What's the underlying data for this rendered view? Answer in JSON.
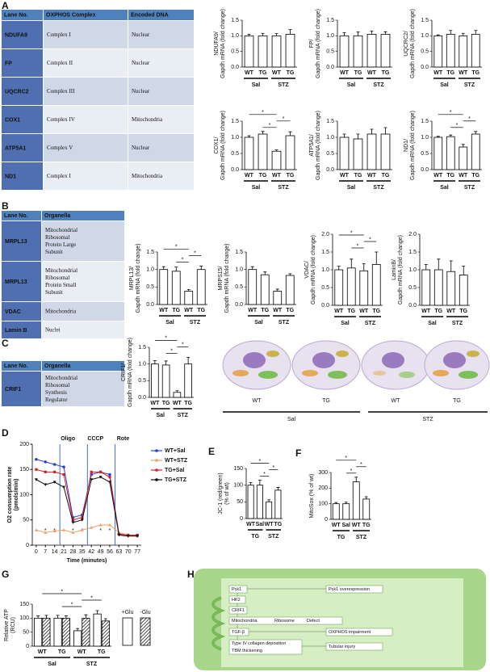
{
  "panels": [
    "A",
    "B",
    "C",
    "D",
    "E",
    "F",
    "G",
    "H"
  ],
  "table_a": {
    "header": [
      "Lane No.",
      "OXPHOS Complex",
      "Encoded DNA"
    ],
    "rows": [
      [
        "NDUFA9",
        "Complex I",
        "Nuclear"
      ],
      [
        "FP",
        "Complex II",
        "Nuclear"
      ],
      [
        "UQCRC2",
        "Complex III",
        "Nuclear"
      ],
      [
        "COX1",
        "Complex IV",
        "Mitochondria"
      ],
      [
        "ATP5A1",
        "Complex V",
        "Nuclear"
      ],
      [
        "ND1",
        "Complex I",
        "Mitochondria"
      ]
    ]
  },
  "table_b": {
    "header": [
      "Lane No.",
      "Organella"
    ],
    "rows": [
      [
        "MRPL13",
        [
          "Mitochondrial",
          "Ribosomal",
          "Protein Large",
          "Subunit"
        ]
      ],
      [
        "MRPL13",
        [
          "Mitochondrial",
          "Ribosomal",
          "Protein Small",
          "Subunit"
        ]
      ],
      [
        "VDAC",
        "Mitochondria"
      ],
      [
        "Lamin B",
        "Nuclei"
      ]
    ]
  },
  "table_c": {
    "header": [
      "Lane No.",
      "Organella"
    ],
    "rows": [
      [
        "CRIF1",
        [
          "Mitochondrial",
          "Ribosomal",
          "Synthesis",
          "Regulator"
        ]
      ]
    ]
  },
  "cells": {
    "labels": [
      "WT",
      "TG",
      "WT",
      "TG"
    ],
    "groups": [
      "Sal",
      "STZ"
    ]
  },
  "diagram_h": {
    "nodes": [
      "Pck1",
      "Pck1 overexpression",
      "HK2",
      "CRIF1",
      "Mitochondria",
      "Ribosome",
      "Defect",
      "TGF-β",
      "OXPHOS impairment",
      "Type IV collagen deposition",
      "TBM thickening",
      "Tubular injury"
    ]
  },
  "chart_data": [
    {
      "type": "bar",
      "ylabel": [
        "NDUFA9/",
        "Gapdh mRNA (fold change)"
      ],
      "categories": [
        "WT",
        "TG",
        "WT",
        "TG"
      ],
      "groups": [
        "Sal",
        "STZ"
      ],
      "values": [
        1.0,
        1.0,
        1.0,
        1.05
      ],
      "errors": [
        0.05,
        0.08,
        0.07,
        0.15
      ],
      "ylim": [
        0,
        1.5
      ],
      "yticks": [
        {
          "value": 0,
          "label": "0.0"
        },
        {
          "value": 0.5,
          "label": "0.5"
        },
        {
          "value": 1,
          "label": "1.0"
        },
        {
          "value": 1.5,
          "label": "1.5"
        }
      ],
      "significance": []
    },
    {
      "type": "bar",
      "ylabel": [
        "FP/",
        "Gapdh mRNA (fold change)"
      ],
      "categories": [
        "WT",
        "TG",
        "WT",
        "TG"
      ],
      "groups": [
        "Sal",
        "STZ"
      ],
      "values": [
        1.0,
        1.0,
        1.05,
        1.05
      ],
      "errors": [
        0.1,
        0.12,
        0.1,
        0.08
      ],
      "ylim": [
        0,
        1.5
      ],
      "yticks": [
        {
          "value": 0,
          "label": "0.0"
        },
        {
          "value": 0.5,
          "label": "0.5"
        },
        {
          "value": 1,
          "label": "1.0"
        },
        {
          "value": 1.5,
          "label": "1.5"
        }
      ],
      "significance": []
    },
    {
      "type": "bar",
      "ylabel": [
        "UQCRC2/",
        "Gapdh mRNA (fold change)"
      ],
      "categories": [
        "WT",
        "TG",
        "WT",
        "TG"
      ],
      "groups": [
        "Sal",
        "STZ"
      ],
      "values": [
        1.0,
        1.05,
        1.0,
        1.05
      ],
      "errors": [
        0.03,
        0.12,
        0.08,
        0.12
      ],
      "ylim": [
        0,
        1.5
      ],
      "yticks": [
        {
          "value": 0,
          "label": "0.0"
        },
        {
          "value": 0.5,
          "label": "0.5"
        },
        {
          "value": 1,
          "label": "1.0"
        },
        {
          "value": 1.5,
          "label": "1.5"
        }
      ],
      "significance": []
    },
    {
      "type": "bar",
      "ylabel": [
        "COX1/",
        "Gapdh mRNA (fold change)"
      ],
      "categories": [
        "WT",
        "TG",
        "WT",
        "TG"
      ],
      "groups": [
        "Sal",
        "STZ"
      ],
      "values": [
        1.0,
        1.1,
        0.57,
        1.05
      ],
      "errors": [
        0.05,
        0.08,
        0.04,
        0.12
      ],
      "ylim": [
        0,
        1.5
      ],
      "yticks": [
        {
          "value": 0,
          "label": "0.0"
        },
        {
          "value": 0.5,
          "label": "0.5"
        },
        {
          "value": 1,
          "label": "1.0"
        },
        {
          "value": 1.5,
          "label": "1.5"
        }
      ],
      "significance": [
        {
          "bars": [
            1,
            2
          ],
          "label": "*"
        },
        {
          "bars": [
            2,
            3
          ],
          "label": "*"
        },
        {
          "bars": [
            0,
            2
          ],
          "label": "*"
        }
      ]
    },
    {
      "type": "bar",
      "ylabel": [
        "ATP5A1/",
        "Gapdh mRNA (fold change)"
      ],
      "categories": [
        "WT",
        "TG",
        "WT",
        "TG"
      ],
      "groups": [
        "Sal",
        "STZ"
      ],
      "values": [
        1.0,
        0.95,
        1.1,
        1.1
      ],
      "errors": [
        0.1,
        0.15,
        0.15,
        0.2
      ],
      "ylim": [
        0,
        1.5
      ],
      "yticks": [
        {
          "value": 0,
          "label": "0.0"
        },
        {
          "value": 0.5,
          "label": "0.5"
        },
        {
          "value": 1,
          "label": "1.0"
        },
        {
          "value": 1.5,
          "label": "1.5"
        }
      ],
      "significance": []
    },
    {
      "type": "bar",
      "ylabel": [
        "ND1/",
        "Gapdh mRNA (fold change)"
      ],
      "categories": [
        "WT",
        "TG",
        "WT",
        "TG"
      ],
      "groups": [
        "Sal",
        "STZ"
      ],
      "values": [
        1.0,
        1.02,
        0.7,
        1.1
      ],
      "errors": [
        0.03,
        0.05,
        0.08,
        0.08
      ],
      "ylim": [
        0,
        1.5
      ],
      "yticks": [
        {
          "value": 0,
          "label": "0.0"
        },
        {
          "value": 0.5,
          "label": "0.5"
        },
        {
          "value": 1,
          "label": "1.0"
        },
        {
          "value": 1.5,
          "label": "1.5"
        }
      ],
      "significance": [
        {
          "bars": [
            1,
            2
          ],
          "label": "*"
        },
        {
          "bars": [
            2,
            3
          ],
          "label": "*"
        },
        {
          "bars": [
            0,
            2
          ],
          "label": "*"
        }
      ]
    },
    {
      "type": "bar",
      "ylabel": [
        "MRPL13/",
        "Gapdh mRNA (fold change)"
      ],
      "categories": [
        "WT",
        "TG",
        "WT",
        "TG"
      ],
      "groups": [
        "Sal",
        "STZ"
      ],
      "values": [
        1.0,
        0.95,
        0.38,
        1.0
      ],
      "errors": [
        0.08,
        0.12,
        0.05,
        0.1
      ],
      "ylim": [
        0,
        1.5
      ],
      "yticks": [
        {
          "value": 0,
          "label": "0.0"
        },
        {
          "value": 0.5,
          "label": "0.5"
        },
        {
          "value": 1,
          "label": "1.0"
        },
        {
          "value": 1.5,
          "label": "1.5"
        }
      ],
      "significance": [
        {
          "bars": [
            1,
            2
          ],
          "label": "*"
        },
        {
          "bars": [
            2,
            3
          ],
          "label": "*"
        },
        {
          "bars": [
            0,
            2
          ],
          "label": "*"
        }
      ]
    },
    {
      "type": "bar",
      "ylabel": [
        "MRPS15/",
        "Gapdh mRNA (fold change)"
      ],
      "categories": [
        "WT",
        "TG",
        "WT",
        "TG"
      ],
      "groups": [
        "Sal",
        "STZ"
      ],
      "values": [
        1.0,
        0.85,
        0.38,
        0.83
      ],
      "errors": [
        0.08,
        0.08,
        0.06,
        0.05
      ],
      "ylim": [
        0,
        1.5
      ],
      "yticks": [
        {
          "value": 0,
          "label": "0.0"
        },
        {
          "value": 0.5,
          "label": "0.5"
        },
        {
          "value": 1,
          "label": "1.0"
        },
        {
          "value": 1.5,
          "label": "1.5"
        }
      ],
      "significance": []
    },
    {
      "type": "bar",
      "ylabel": [
        "VDAC/",
        "Gapdh mRNA (fold change)"
      ],
      "categories": [
        "WT",
        "TG",
        "WT",
        "TG"
      ],
      "groups": [
        "Sal",
        "STZ"
      ],
      "values": [
        1.0,
        1.05,
        0.97,
        1.15
      ],
      "errors": [
        0.1,
        0.25,
        0.2,
        0.35
      ],
      "ylim": [
        0,
        2
      ],
      "yticks": [
        {
          "value": 0,
          "label": "0.0"
        },
        {
          "value": 0.5,
          "label": "0.5"
        },
        {
          "value": 1,
          "label": "1.0"
        },
        {
          "value": 1.5,
          "label": "1.5"
        },
        {
          "value": 2,
          "label": "2.0"
        }
      ],
      "significance": [
        {
          "bars": [
            1,
            2
          ],
          "label": "*"
        },
        {
          "bars": [
            2,
            3
          ],
          "label": "*"
        },
        {
          "bars": [
            0,
            2
          ],
          "label": "*"
        }
      ]
    },
    {
      "type": "bar",
      "ylabel": [
        "LaminB/",
        "Gapdh mRNA (fold change)"
      ],
      "categories": [
        "WT",
        "TG",
        "WT",
        "TG"
      ],
      "groups": [
        "Sal",
        "STZ"
      ],
      "values": [
        1.0,
        1.0,
        0.95,
        0.85
      ],
      "errors": [
        0.15,
        0.3,
        0.3,
        0.25
      ],
      "ylim": [
        0,
        2
      ],
      "yticks": [
        {
          "value": 0,
          "label": "0.0"
        },
        {
          "value": 0.5,
          "label": "0.5"
        },
        {
          "value": 1,
          "label": "1.0"
        },
        {
          "value": 1.5,
          "label": "1.5"
        },
        {
          "value": 2,
          "label": "2.0"
        }
      ],
      "significance": []
    },
    {
      "type": "bar",
      "ylabel": [
        "CRIF1/",
        "Gapdh mRNA (fold change)"
      ],
      "categories": [
        "WT",
        "TG",
        "WT",
        "TG"
      ],
      "groups": [
        "Sal",
        "STZ"
      ],
      "values": [
        1.0,
        0.97,
        0.15,
        1.0
      ],
      "errors": [
        0.1,
        0.12,
        0.05,
        0.2
      ],
      "ylim": [
        0,
        1.5
      ],
      "yticks": [
        {
          "value": 0,
          "label": "0.0"
        },
        {
          "value": 0.5,
          "label": "0.5"
        },
        {
          "value": 1,
          "label": "1.0"
        },
        {
          "value": 1.5,
          "label": "1.5"
        }
      ],
      "significance": [
        {
          "bars": [
            1,
            2
          ],
          "label": "*"
        },
        {
          "bars": [
            2,
            3
          ],
          "label": "*"
        },
        {
          "bars": [
            0,
            2
          ],
          "label": "*"
        }
      ]
    },
    {
      "type": "line",
      "ylabel": [
        "O2 consumption rate",
        "(pmols/min)"
      ],
      "xlabel": "Time (minutes)",
      "x": [
        0,
        7,
        14,
        21,
        28,
        35,
        42,
        49,
        56,
        63,
        70,
        77
      ],
      "xlim": [
        -3,
        80
      ],
      "xticks": [
        0,
        7,
        14,
        21,
        28,
        35,
        42,
        49,
        56,
        63,
        70,
        77
      ],
      "ylim": [
        0,
        200
      ],
      "yticks": [
        0,
        50,
        100,
        150,
        200
      ],
      "injections": [
        {
          "label": "Oligo",
          "x": 18
        },
        {
          "label": "CCCP",
          "x": 39
        },
        {
          "label": "Rote",
          "x": 60
        }
      ],
      "significance_label": "*",
      "significance_x": [
        7,
        14,
        28,
        35,
        49,
        56
      ],
      "series": [
        {
          "name": "WT+Sal",
          "color": "#2b3fd6",
          "marker": "circle",
          "values": [
            170,
            165,
            160,
            155,
            55,
            60,
            140,
            145,
            140,
            22,
            20,
            20
          ]
        },
        {
          "name": "WT+STZ",
          "color": "#f0a060",
          "marker": "triangle",
          "values": [
            30,
            25,
            28,
            30,
            25,
            30,
            35,
            40,
            40,
            25,
            20,
            18
          ]
        },
        {
          "name": "TG+Sal",
          "color": "#d62020",
          "marker": "square",
          "values": [
            150,
            145,
            145,
            140,
            50,
            55,
            145,
            145,
            135,
            22,
            20,
            20
          ]
        },
        {
          "name": "TG+STZ",
          "color": "#111111",
          "marker": "triangle-down",
          "values": [
            130,
            120,
            125,
            115,
            45,
            50,
            130,
            135,
            125,
            20,
            18,
            18
          ]
        }
      ]
    },
    {
      "type": "bar",
      "ylabel": [
        "JC-1 (red/green)",
        "(% of wt)"
      ],
      "categories": [
        "WT",
        "Sal",
        "WT",
        "TG"
      ],
      "groups": [
        "TG",
        "STZ"
      ],
      "values": [
        100,
        100,
        50,
        85
      ],
      "errors": [
        8,
        15,
        6,
        8
      ],
      "ylim": [
        0,
        150
      ],
      "yticks": [
        0,
        50,
        100,
        150
      ],
      "significance": [
        {
          "bars": [
            1,
            2
          ],
          "label": "*"
        },
        {
          "bars": [
            2,
            3
          ],
          "label": "*"
        },
        {
          "bars": [
            0,
            2
          ],
          "label": "*"
        }
      ]
    },
    {
      "type": "bar",
      "ylabel": [
        "MitoSox (% of wt)"
      ],
      "categories": [
        "WT",
        "Sal",
        "WT",
        "TG"
      ],
      "groups": [
        "TG",
        "STZ"
      ],
      "values": [
        100,
        100,
        240,
        130
      ],
      "errors": [
        8,
        10,
        30,
        15
      ],
      "ylim": [
        0,
        300
      ],
      "yticks": [
        0,
        100,
        200,
        300
      ],
      "significance": [
        {
          "bars": [
            1,
            2
          ],
          "label": "*"
        },
        {
          "bars": [
            2,
            3
          ],
          "label": "*"
        },
        {
          "bars": [
            0,
            2
          ],
          "label": "*"
        }
      ]
    },
    {
      "type": "bar",
      "ylabel": [
        "Relative ATP",
        "(RCU)"
      ],
      "categories": [
        "WT",
        "TG",
        "WT",
        "TG"
      ],
      "groups": [
        "Sal",
        "STZ"
      ],
      "ylim": [
        0,
        150
      ],
      "yticks": [
        0,
        50,
        100,
        150
      ],
      "series": [
        {
          "name": "+Glu",
          "pattern": "none",
          "values": [
            100,
            100,
            55,
            115
          ],
          "errors": [
            8,
            10,
            8,
            12
          ]
        },
        {
          "name": "-Glu",
          "pattern": "hatch",
          "values": [
            100,
            100,
            100,
            90
          ],
          "errors": [
            10,
            8,
            12,
            8
          ]
        }
      ],
      "significance": [
        {
          "bars": [
            1,
            2
          ],
          "label": "*"
        },
        {
          "bars": [
            2,
            3
          ],
          "label": "*"
        },
        {
          "bars": [
            0,
            2
          ],
          "label": "*"
        }
      ]
    }
  ]
}
